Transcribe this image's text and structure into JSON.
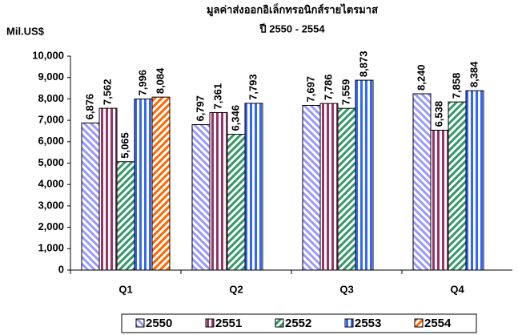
{
  "chart_data": {
    "type": "bar",
    "title": "มูลค่าส่งออกอิเล็กทรอนิกส์รายไตรมาส",
    "subtitle": "ปี 2550 - 2554",
    "y_label": "Mil.US$",
    "categories": [
      "Q1",
      "Q2",
      "Q3",
      "Q4"
    ],
    "series": [
      {
        "name": "2550",
        "color": "#9999ff",
        "pattern": "diagonal",
        "values": [
          6876,
          6797,
          7697,
          8240
        ],
        "value_labels": [
          "6,876",
          "6,797",
          "7,697",
          "8,240"
        ]
      },
      {
        "name": "2551",
        "color": "#993366",
        "pattern": "vertical",
        "values": [
          7562,
          7361,
          7786,
          6538
        ],
        "value_labels": [
          "7,562",
          "7,361",
          "7,786",
          "6,538"
        ]
      },
      {
        "name": "2552",
        "color": "#339966",
        "pattern": "diagonal-reverse",
        "values": [
          5065,
          6346,
          7559,
          7858
        ],
        "value_labels": [
          "5,065",
          "6,346",
          "7,559",
          "7,858"
        ]
      },
      {
        "name": "2553",
        "color": "#3366ff",
        "pattern": "vertical",
        "values": [
          7996,
          7793,
          8873,
          8384
        ],
        "value_labels": [
          "7,996",
          "7,793",
          "8,873",
          "8,384"
        ]
      },
      {
        "name": "2554",
        "color": "#ff6600",
        "pattern": "diagonal-reverse",
        "values": [
          8084,
          null,
          null,
          null
        ],
        "value_labels": [
          "8,084",
          null,
          null,
          null
        ]
      }
    ],
    "ylim": [
      0,
      10000
    ],
    "yticks": [
      0,
      {
        "value": 1000,
        "label": "1,000"
      },
      {
        "value": 2000,
        "label": "2,000"
      },
      {
        "value": 3000,
        "label": "3,000"
      },
      {
        "value": 4000,
        "label": "4,000"
      },
      {
        "value": 5000,
        "label": "5,000"
      },
      {
        "value": 6000,
        "label": "6,000"
      },
      {
        "value": 7000,
        "label": "7,000"
      },
      {
        "value": 8000,
        "label": "8,000"
      },
      {
        "value": 9000,
        "label": "9,000"
      },
      {
        "value": 10000,
        "label": "10,000"
      }
    ],
    "grid": false,
    "legend": "bottom"
  }
}
